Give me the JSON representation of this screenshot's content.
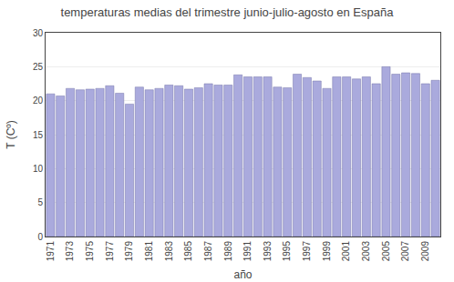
{
  "chart_data": {
    "type": "bar",
    "title": "temperaturas medias del trimestre junio-julio-agosto en España",
    "xlabel": "año",
    "ylabel": "T (Cº)",
    "x": [
      1971,
      1972,
      1973,
      1974,
      1975,
      1976,
      1977,
      1978,
      1979,
      1980,
      1981,
      1982,
      1983,
      1984,
      1985,
      1986,
      1987,
      1988,
      1989,
      1990,
      1991,
      1992,
      1993,
      1994,
      1995,
      1996,
      1997,
      1998,
      1999,
      2000,
      2001,
      2002,
      2003,
      2004,
      2005,
      2006,
      2007,
      2008,
      2009,
      2010
    ],
    "values": [
      21.0,
      20.7,
      21.8,
      21.6,
      21.7,
      21.8,
      22.2,
      21.1,
      19.5,
      22.0,
      21.6,
      21.8,
      22.3,
      22.2,
      21.7,
      21.9,
      22.5,
      22.3,
      22.3,
      23.8,
      23.5,
      23.5,
      23.5,
      22.0,
      21.9,
      23.9,
      23.4,
      22.9,
      21.8,
      23.5,
      23.5,
      23.2,
      23.5,
      22.5,
      25.0,
      23.9,
      24.1,
      24.0,
      22.5,
      23.0
    ],
    "color": "#aaaadd",
    "xlim": [
      1970.5,
      2010.5
    ],
    "xticks": [
      1971,
      1973,
      1975,
      1977,
      1979,
      1981,
      1983,
      1985,
      1987,
      1989,
      1991,
      1993,
      1995,
      1997,
      1999,
      2001,
      2003,
      2005,
      2007,
      2009
    ],
    "ylim": [
      0,
      30
    ],
    "yticks": [
      0,
      5,
      10,
      15,
      20,
      25,
      30
    ],
    "grid": true
  }
}
